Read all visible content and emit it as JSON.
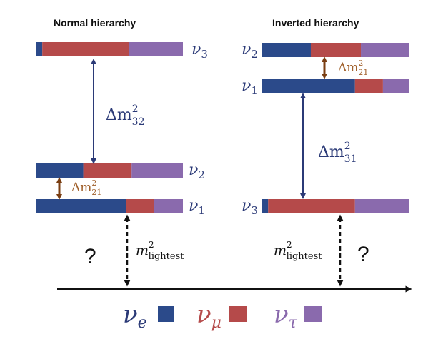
{
  "titles": {
    "normal": "Normal hierarchy",
    "inverted": "Inverted hierarchy"
  },
  "colors": {
    "nu_e": "#2b4a8a",
    "nu_mu": "#b54a4a",
    "nu_tau": "#8a6aad",
    "arrow_blue": "#2b3a77",
    "arrow_brown": "#7a3e12",
    "label_brown": "#a0602b"
  },
  "normal": {
    "levels": [
      {
        "symbol": "ν",
        "sub": "3",
        "fractions": [
          0.04,
          0.59,
          0.37
        ]
      },
      {
        "symbol": "ν",
        "sub": "2",
        "fractions": [
          0.32,
          0.33,
          0.35
        ]
      },
      {
        "symbol": "ν",
        "sub": "1",
        "fractions": [
          0.61,
          0.19,
          0.2
        ]
      }
    ],
    "big_splitting": {
      "base": "Δm",
      "sup": "2",
      "sub": "32"
    },
    "small_splitting": {
      "base": "Δm",
      "sup": "2",
      "sub": "21"
    },
    "lightest": {
      "base": "m",
      "sup": "2",
      "sub": "lightest"
    },
    "question": "?"
  },
  "inverted": {
    "levels": [
      {
        "symbol": "ν",
        "sub": "2",
        "fractions": [
          0.33,
          0.34,
          0.33
        ]
      },
      {
        "symbol": "ν",
        "sub": "1",
        "fractions": [
          0.63,
          0.19,
          0.18
        ]
      },
      {
        "symbol": "ν",
        "sub": "3",
        "fractions": [
          0.04,
          0.59,
          0.37
        ]
      }
    ],
    "big_splitting": {
      "base": "Δm",
      "sup": "2",
      "sub": "31"
    },
    "small_splitting": {
      "base": "Δm",
      "sup": "2",
      "sub": "21"
    },
    "lightest": {
      "base": "m",
      "sup": "2",
      "sub": "lightest"
    },
    "question": "?"
  },
  "legend": [
    {
      "symbol": "ν",
      "sub": "e",
      "color_key": "nu_e"
    },
    {
      "symbol": "ν",
      "sub": "μ",
      "color_key": "nu_mu"
    },
    {
      "symbol": "ν",
      "sub": "τ",
      "color_key": "nu_tau"
    }
  ]
}
